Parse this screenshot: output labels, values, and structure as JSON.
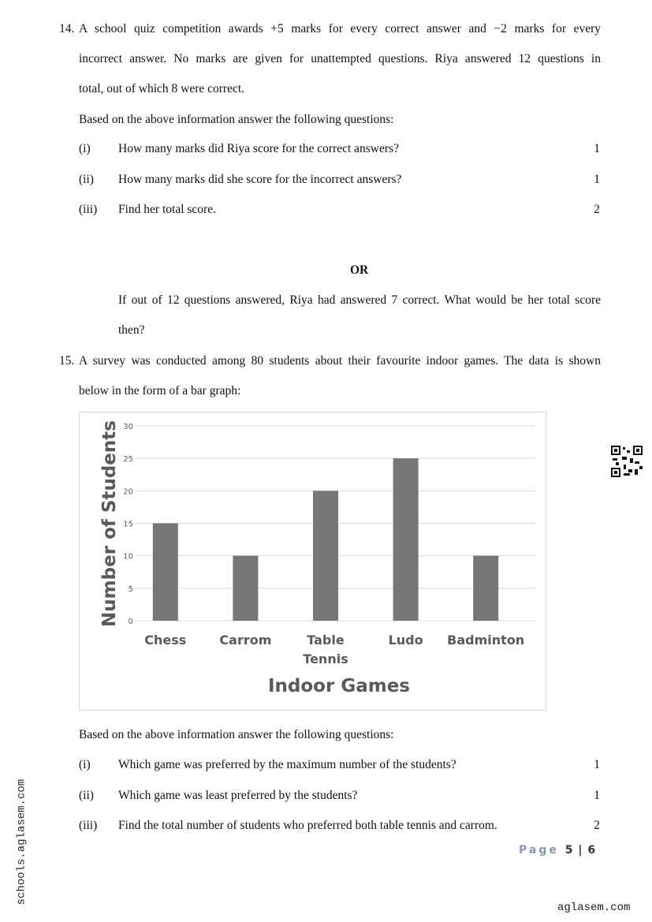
{
  "q14": {
    "number": "14.",
    "lines": [
      "A school quiz competition awards +5 marks for every correct answer and −2 marks for every",
      "incorrect answer. No marks are given for unattempted questions. Riya answered 12 questions in",
      "total, out of which 8 were correct."
    ],
    "instruction": "Based on the above information answer the following questions:",
    "parts": [
      {
        "label": "(i)",
        "text": "How many marks did Riya score for the correct answers?",
        "marks": "1"
      },
      {
        "label": "(ii)",
        "text": "How many marks did she score for the incorrect answers?",
        "marks": "1"
      },
      {
        "label": "(iii)",
        "text": "Find her total score.",
        "marks": "2"
      }
    ],
    "or": "OR",
    "alt_lines": [
      "If out of 12 questions answered, Riya had answered 7 correct. What would be her total score",
      "then?"
    ]
  },
  "q15": {
    "number": "15.",
    "lines": [
      "A survey was conducted among 80 students about their favourite indoor games. The data is shown",
      "below in the form of a bar graph:"
    ],
    "instruction": "Based on the above information answer the following questions:",
    "parts": [
      {
        "label": "(i)",
        "text": "Which game was preferred by the maximum number of the students?",
        "marks": "1"
      },
      {
        "label": "(ii)",
        "text": "Which game was least preferred by the students?",
        "marks": "1"
      },
      {
        "label": "(iii)",
        "text": "Find the total number of students who preferred both table tennis and carrom.",
        "marks": "2"
      }
    ]
  },
  "chart_data": {
    "type": "bar",
    "categories": [
      "Chess",
      "Carrom",
      "Table Tennis",
      "Ludo",
      "Badminton"
    ],
    "category_lines": [
      [
        "Chess"
      ],
      [
        "Carrom"
      ],
      [
        "Table",
        "Tennis"
      ],
      [
        "Ludo"
      ],
      [
        "Badminton"
      ]
    ],
    "values": [
      15,
      10,
      20,
      25,
      10
    ],
    "xlabel": "Indoor Games",
    "ylabel": "Number of Students",
    "ylim": [
      0,
      30
    ],
    "yticks": [
      0,
      5,
      10,
      15,
      20,
      25,
      30
    ],
    "grid": true,
    "bar_color": "#767676"
  },
  "footer": {
    "page_word": "Page",
    "page": "5 | 6",
    "site": "aglasem.com",
    "side_watermark": "schools.aglasem.com"
  }
}
